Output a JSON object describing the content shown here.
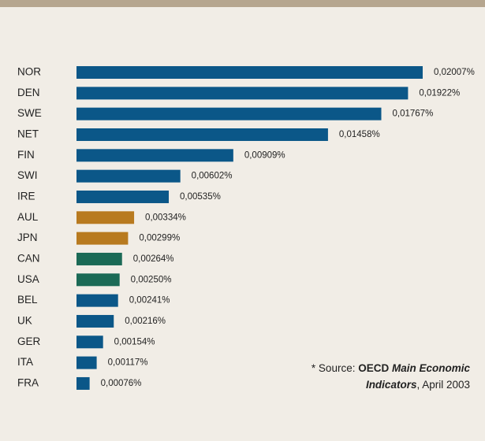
{
  "chart_data": {
    "type": "bar",
    "orientation": "horizontal",
    "categories": [
      "NOR",
      "DEN",
      "SWE",
      "NET",
      "FIN",
      "SWI",
      "IRE",
      "AUL",
      "JPN",
      "CAN",
      "USA",
      "BEL",
      "UK",
      "GER",
      "ITA",
      "FRA"
    ],
    "values": [
      0.02007,
      0.01922,
      0.01767,
      0.01458,
      0.00909,
      0.00602,
      0.00535,
      0.00334,
      0.00299,
      0.00264,
      0.0025,
      0.00241,
      0.00216,
      0.00154,
      0.00117,
      0.00076
    ],
    "value_labels": [
      "0,02007%",
      "0,01922%",
      "0,01767%",
      "0,01458%",
      "0,00909%",
      "0,00602%",
      "0,00535%",
      "0,00334%",
      "0,00299%",
      "0,00264%",
      "0,00250%",
      "0,00241%",
      "0,00216%",
      "0,00154%",
      "0,00117%",
      "0,00076%"
    ],
    "colors": [
      "#0b5788",
      "#0b5788",
      "#0b5788",
      "#0b5788",
      "#0b5788",
      "#0b5788",
      "#0b5788",
      "#b87a1f",
      "#b87a1f",
      "#1b6a56",
      "#1b6a56",
      "#0b5788",
      "#0b5788",
      "#0b5788",
      "#0b5788",
      "#0b5788"
    ],
    "source": {
      "prefix": "* Source: ",
      "org": "OECD",
      "title_line1": "Main Economic",
      "title_line2": "Indicators",
      "date": ", April 2003"
    }
  }
}
